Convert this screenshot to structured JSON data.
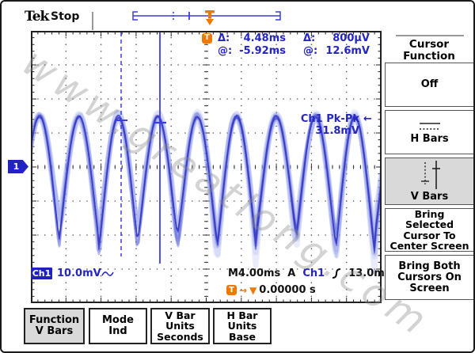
{
  "header": {
    "brand": "Tek",
    "status": "Stop"
  },
  "trigger_icon_label": "T",
  "cursor_readout": {
    "delta_t_label": "Δ:",
    "delta_t_value": "4.48ms",
    "delta_v_label": "Δ:",
    "delta_v_value": "800µV",
    "at_t_label": "@:",
    "at_t_value": "-5.92ms",
    "at_v_label": "@:",
    "at_v_value": "12.6mV"
  },
  "measurement": {
    "source_line": "Ch1 Pk-Pk",
    "value_line": "31.8mV",
    "arrow": "←"
  },
  "channel_readout": {
    "label": "Ch1",
    "scale": "10.0mV"
  },
  "horizontal_readout": {
    "timebase": "M4.00ms",
    "acquisition": "A",
    "trigger_source": "Ch1",
    "trigger_level": "13.0mV"
  },
  "trigger_position": {
    "arrow": "→",
    "marker": "▼",
    "value": "0.00000 s"
  },
  "channel_marker": "1",
  "right_menu": {
    "title_lines": [
      "Cursor",
      "Function"
    ],
    "buttons": [
      {
        "label": "Off",
        "selected": false
      },
      {
        "label": "H Bars",
        "selected": false
      },
      {
        "label": "V Bars",
        "selected": true
      },
      {
        "lines": [
          "Bring",
          "Selected",
          "Cursor To",
          "Center Screen"
        ],
        "selected": false
      },
      {
        "lines": [
          "Bring Both",
          "Cursors On",
          "Screen"
        ],
        "selected": false
      }
    ]
  },
  "bottom_menu": {
    "buttons": [
      {
        "lines": [
          "Function",
          "V Bars"
        ],
        "selected": true
      },
      {
        "lines": [
          "Mode",
          "Ind"
        ],
        "selected": false
      },
      {
        "lines": [
          "V Bar",
          "Units",
          "Seconds"
        ],
        "selected": false
      },
      {
        "lines": [
          "H Bar",
          "Units",
          "Base"
        ],
        "selected": false
      }
    ]
  },
  "watermark": "www.greatlong.com",
  "waveform_info": {
    "type": "noisy periodic humps, stopped acquisition",
    "visible_periods": 9,
    "pk_pk": "31.8mV",
    "vertical_scale": "10.0mV/div",
    "timebase": "4.00ms/div"
  },
  "colors": {
    "trace_core": "#373cc3",
    "trace_halo": "#c7cbf0",
    "cursor_blue": "#3c3ce0",
    "readout_blue": "#2525c0",
    "accent_orange": "#f07800",
    "selected_gray": "#d9d9d9"
  }
}
